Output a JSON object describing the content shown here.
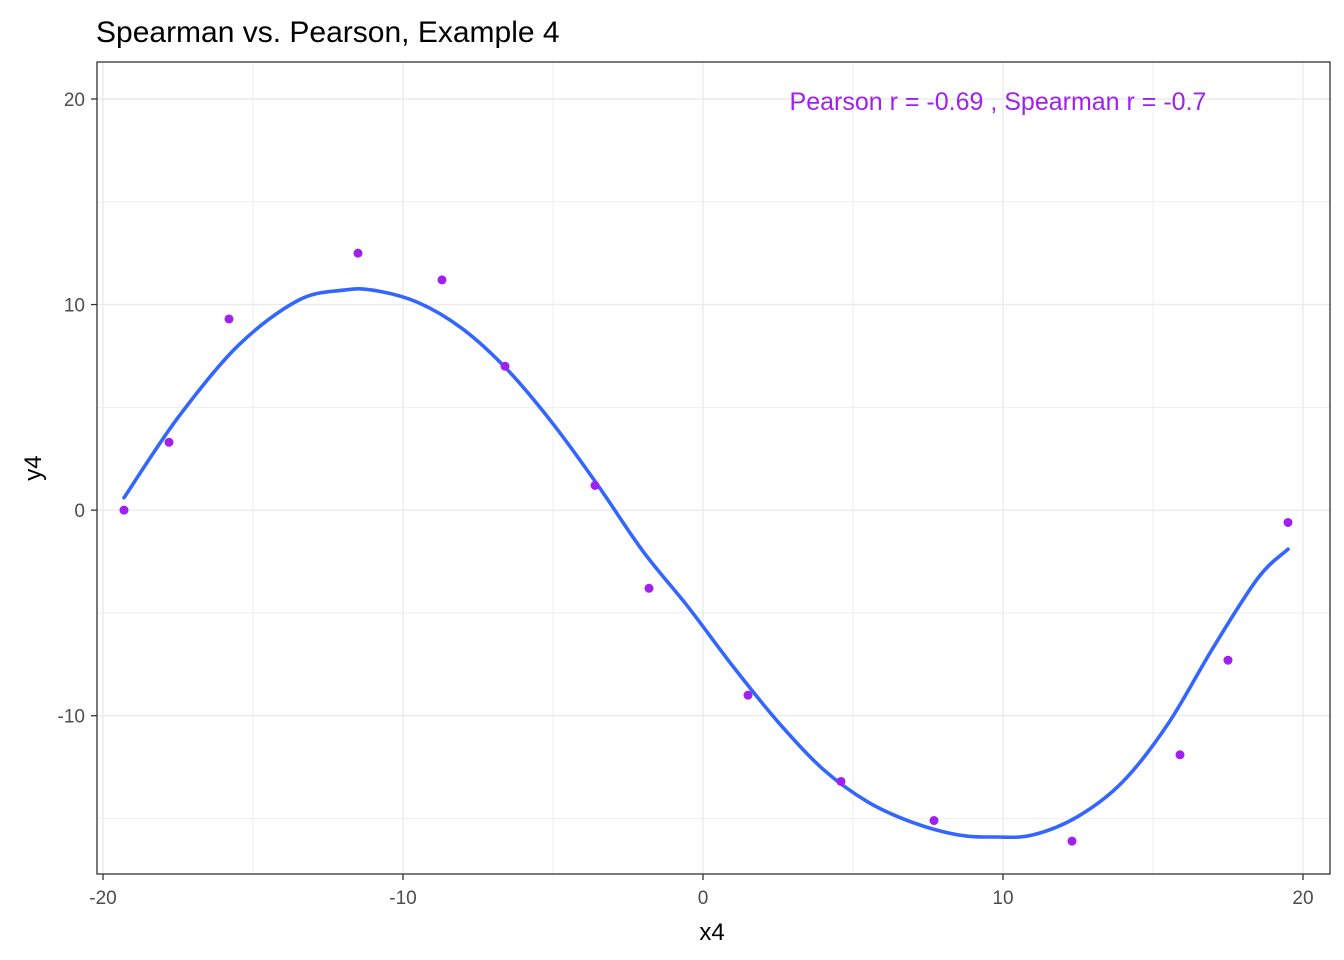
{
  "chart_data": {
    "type": "scatter",
    "title": "Spearman vs. Pearson, Example 4",
    "xlabel": "x4",
    "ylabel": "y4",
    "xlim": [
      -20.2,
      20.9
    ],
    "ylim": [
      -17.7,
      21.8
    ],
    "x_ticks": [
      -20,
      -10,
      0,
      10,
      20
    ],
    "y_ticks": [
      -10,
      0,
      10,
      20
    ],
    "grid": true,
    "legend": "none",
    "annotation": "Pearson r =  -0.69 , Spearman r =  -0.7",
    "colors": {
      "points": "#a020f0",
      "smooth": "#3366ff",
      "annotation": "#a020f0",
      "grid": "#ebebeb",
      "border": "#333333"
    },
    "series": [
      {
        "type": "points",
        "x": [
          -19.3,
          -17.8,
          -15.8,
          -11.5,
          -8.7,
          -6.6,
          -3.6,
          -1.8,
          1.5,
          4.6,
          7.7,
          12.3,
          15.9,
          17.5,
          19.5
        ],
        "y": [
          0.0,
          3.3,
          9.3,
          12.5,
          11.2,
          7.0,
          1.2,
          -3.8,
          -9.0,
          -13.2,
          -15.1,
          -16.1,
          -11.9,
          -7.3,
          -0.6
        ]
      },
      {
        "type": "smooth",
        "x": [
          -19.3,
          -17.5,
          -15.5,
          -13.5,
          -12.0,
          -11.0,
          -9.5,
          -8.0,
          -6.5,
          -5.0,
          -3.5,
          -2.0,
          -0.5,
          1.0,
          2.5,
          4.0,
          5.5,
          7.0,
          8.5,
          9.8,
          11.0,
          12.5,
          14.0,
          15.5,
          17.0,
          18.5,
          19.5
        ],
        "y": [
          0.6,
          4.5,
          8.0,
          10.2,
          10.7,
          10.7,
          10.1,
          8.8,
          6.8,
          4.2,
          1.2,
          -2.0,
          -4.7,
          -7.6,
          -10.3,
          -12.6,
          -14.2,
          -15.2,
          -15.8,
          -15.9,
          -15.8,
          -14.9,
          -13.2,
          -10.4,
          -6.7,
          -3.3,
          -1.9
        ]
      }
    ]
  }
}
